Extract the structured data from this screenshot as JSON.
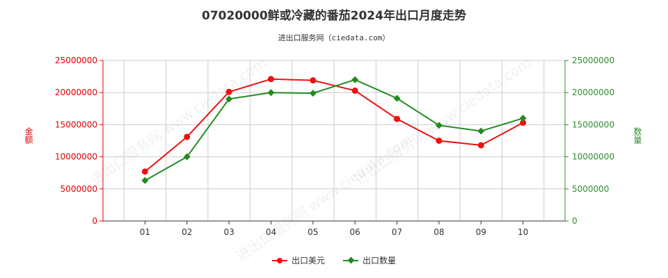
{
  "chart_data": {
    "type": "line",
    "title": "07020000鲜或冷藏的番茄2024年出口月度走势",
    "subtitle": "进出口服务网（ciedata.com）",
    "watermark": "进出口服务网 www.ciedata.com",
    "categories": [
      "01",
      "02",
      "03",
      "04",
      "05",
      "06",
      "07",
      "08",
      "09",
      "10"
    ],
    "y_left": {
      "label": "金额",
      "ticks": [
        "0",
        "5000000",
        "10000000",
        "15000000",
        "20000000",
        "25000000"
      ],
      "ylim": [
        0,
        25000000
      ],
      "color": "#e00000"
    },
    "y_right": {
      "label": "数量",
      "ticks": [
        "0",
        "5000000",
        "10000000",
        "15000000",
        "20000000",
        "25000000"
      ],
      "ylim": [
        0,
        25000000
      ],
      "color": "#2c8c2c"
    },
    "grid": true,
    "legend_position": "bottom",
    "series": [
      {
        "name": "出口美元",
        "axis": "left",
        "color": "#ee1111",
        "marker": "circle",
        "values": [
          7700000,
          13100000,
          20100000,
          22100000,
          21900000,
          20300000,
          15900000,
          12500000,
          11800000,
          15300000
        ]
      },
      {
        "name": "出口数量",
        "axis": "right",
        "color": "#228b22",
        "marker": "diamond",
        "values": [
          6300000,
          10000000,
          19000000,
          20000000,
          19900000,
          22000000,
          19100000,
          14900000,
          14000000,
          16000000
        ]
      }
    ]
  }
}
